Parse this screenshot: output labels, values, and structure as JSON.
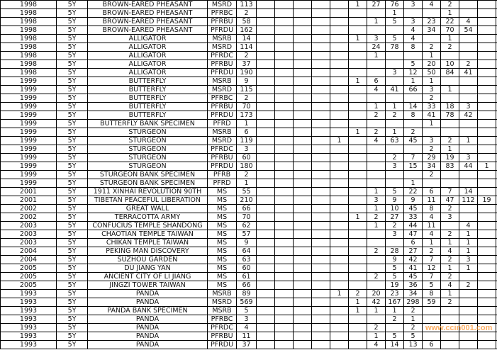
{
  "rows": [
    {
      "year": "1998",
      "term": "5Y",
      "name": "BROWN-EARED PHEASANT",
      "type": "MSRD",
      "count": "113",
      "v": [
        "",
        "",
        "",
        "",
        "",
        "1",
        "27",
        "76",
        "3",
        "4",
        "2",
        "",
        "",
        ""
      ]
    },
    {
      "year": "1998",
      "term": "5Y",
      "name": "BROWN-EARED PHEASANT",
      "type": "PFRBC",
      "count": "2",
      "v": [
        "",
        "",
        "",
        "",
        "",
        "",
        "",
        "1",
        "",
        "",
        "1",
        "",
        "",
        ""
      ]
    },
    {
      "year": "1998",
      "term": "5Y",
      "name": "BROWN-EARED PHEASANT",
      "type": "PFRBU",
      "count": "58",
      "v": [
        "",
        "",
        "",
        "",
        "",
        "",
        "1",
        "5",
        "3",
        "23",
        "22",
        "4",
        "",
        ""
      ]
    },
    {
      "year": "1998",
      "term": "5Y",
      "name": "BROWN-EARED PHEASANT",
      "type": "PFRDU",
      "count": "162",
      "v": [
        "",
        "",
        "",
        "",
        "",
        "",
        "",
        "",
        "4",
        "34",
        "70",
        "54",
        "",
        ""
      ]
    },
    {
      "year": "1998",
      "term": "5Y",
      "name": "ALLIGATOR",
      "type": "MSRB",
      "count": "14",
      "v": [
        "",
        "",
        "",
        "",
        "",
        "1",
        "3",
        "5",
        "4",
        "",
        "1",
        "",
        "",
        ""
      ]
    },
    {
      "year": "1998",
      "term": "5Y",
      "name": "ALLIGATOR",
      "type": "MSRD",
      "count": "114",
      "v": [
        "",
        "",
        "",
        "",
        "",
        "",
        "24",
        "78",
        "8",
        "2",
        "2",
        "",
        "",
        ""
      ]
    },
    {
      "year": "1998",
      "term": "5Y",
      "name": "ALLIGATOR",
      "type": "PFRDC",
      "count": "2",
      "v": [
        "",
        "",
        "",
        "",
        "",
        "",
        "1",
        "",
        "",
        "1",
        "",
        "",
        "",
        ""
      ]
    },
    {
      "year": "1998",
      "term": "5Y",
      "name": "ALLIGATOR",
      "type": "PFRBU",
      "count": "37",
      "v": [
        "",
        "",
        "",
        "",
        "",
        "",
        "",
        "",
        "5",
        "20",
        "10",
        "2",
        "",
        ""
      ]
    },
    {
      "year": "1998",
      "term": "5Y",
      "name": "ALLIGATOR",
      "type": "PFRDU",
      "count": "190",
      "v": [
        "",
        "",
        "",
        "",
        "",
        "",
        "",
        "3",
        "12",
        "50",
        "84",
        "41",
        "",
        ""
      ]
    },
    {
      "year": "1999",
      "term": "5Y",
      "name": "BUTTERFLY",
      "type": "MSRB",
      "count": "9",
      "v": [
        "",
        "",
        "",
        "",
        "",
        "1",
        "6",
        "",
        "1",
        "1",
        "",
        "",
        "",
        ""
      ]
    },
    {
      "year": "1999",
      "term": "5Y",
      "name": "BUTTERFLY",
      "type": "MSRD",
      "count": "115",
      "v": [
        "",
        "",
        "",
        "",
        "",
        "",
        "4",
        "41",
        "66",
        "3",
        "1",
        "",
        "",
        ""
      ]
    },
    {
      "year": "1999",
      "term": "5Y",
      "name": "BUTTERFLY",
      "type": "PFRBC",
      "count": "2",
      "v": [
        "",
        "",
        "",
        "",
        "",
        "",
        "",
        "",
        "",
        "2",
        "",
        "",
        "",
        ""
      ]
    },
    {
      "year": "1999",
      "term": "5Y",
      "name": "BUTTERFLY",
      "type": "PFRBU",
      "count": "70",
      "v": [
        "",
        "",
        "",
        "",
        "",
        "",
        "1",
        "1",
        "14",
        "33",
        "18",
        "3",
        "",
        ""
      ]
    },
    {
      "year": "1999",
      "term": "5Y",
      "name": "BUTTERFLY",
      "type": "PFRDU",
      "count": "173",
      "v": [
        "",
        "",
        "",
        "",
        "",
        "",
        "2",
        "2",
        "8",
        "41",
        "78",
        "42",
        "",
        ""
      ]
    },
    {
      "year": "1999",
      "term": "5Y",
      "name": "BUTTERFLY BANK SPECIMEN",
      "type": "PFRD",
      "count": "1",
      "v": [
        "",
        "",
        "",
        "",
        "",
        "",
        "",
        "",
        "",
        "1",
        "",
        "",
        "",
        ""
      ]
    },
    {
      "year": "1999",
      "term": "5Y",
      "name": "STURGEON",
      "type": "MSRB",
      "count": "6",
      "v": [
        "",
        "",
        "",
        "",
        "",
        "1",
        "2",
        "1",
        "2",
        "",
        "",
        "",
        "",
        ""
      ]
    },
    {
      "year": "1999",
      "term": "5Y",
      "name": "STURGEON",
      "type": "MSRD",
      "count": "119",
      "v": [
        "",
        "",
        "",
        "",
        "1",
        "",
        "4",
        "63",
        "45",
        "3",
        "2",
        "1",
        "",
        ""
      ]
    },
    {
      "year": "1999",
      "term": "5Y",
      "name": "STURGEON",
      "type": "PFRDC",
      "count": "3",
      "v": [
        "",
        "",
        "",
        "",
        "",
        "",
        "",
        "",
        "",
        "2",
        "1",
        "",
        "",
        ""
      ]
    },
    {
      "year": "1999",
      "term": "5Y",
      "name": "STURGEON",
      "type": "PFRBU",
      "count": "60",
      "v": [
        "",
        "",
        "",
        "",
        "",
        "",
        "",
        "2",
        "7",
        "29",
        "19",
        "3",
        "",
        ""
      ]
    },
    {
      "year": "1999",
      "term": "5Y",
      "name": "STURGEON",
      "type": "PFRDU",
      "count": "180",
      "v": [
        "",
        "",
        "",
        "",
        "",
        "",
        "",
        "3",
        "15",
        "34",
        "83",
        "44",
        "1",
        ""
      ]
    },
    {
      "year": "1999",
      "term": "5Y",
      "name": "STURGEON BANK SPECIMEN",
      "type": "PFRB",
      "count": "2",
      "v": [
        "",
        "",
        "",
        "",
        "",
        "",
        "",
        "",
        "",
        "2",
        "",
        "",
        "",
        ""
      ]
    },
    {
      "year": "1999",
      "term": "5Y",
      "name": "STURGEON BANK SPECIMEN",
      "type": "PFRD",
      "count": "1",
      "v": [
        "",
        "",
        "",
        "",
        "",
        "",
        "",
        "",
        "1",
        "",
        "",
        "",
        "",
        ""
      ]
    },
    {
      "year": "2001",
      "term": "5Y",
      "name": "1911 XINHAI REVOLUTION 90TH",
      "type": "MS",
      "count": "55",
      "v": [
        "",
        "",
        "",
        "",
        "",
        "",
        "1",
        "5",
        "22",
        "6",
        "7",
        "14",
        "",
        ""
      ]
    },
    {
      "year": "2001",
      "term": "5Y",
      "name": "TIBETAN PEACEFUL LIBERATION",
      "type": "MS",
      "count": "210",
      "v": [
        "",
        "",
        "",
        "",
        "",
        "",
        "3",
        "9",
        "9",
        "11",
        "47",
        "112",
        "19",
        ""
      ]
    },
    {
      "year": "2002",
      "term": "5Y",
      "name": "GREAT WALL",
      "type": "MS",
      "count": "66",
      "v": [
        "",
        "",
        "",
        "",
        "",
        "",
        "1",
        "10",
        "45",
        "8",
        "2",
        "",
        "",
        ""
      ]
    },
    {
      "year": "2002",
      "term": "5Y",
      "name": "TERRACOTTA ARMY",
      "type": "MS",
      "count": "70",
      "v": [
        "",
        "",
        "",
        "",
        "",
        "1",
        "2",
        "27",
        "33",
        "4",
        "3",
        "",
        "",
        ""
      ]
    },
    {
      "year": "2003",
      "term": "5Y",
      "name": "CONFUCIUS TEMPLE SHANDONG",
      "type": "MS",
      "count": "62",
      "v": [
        "",
        "",
        "",
        "",
        "",
        "",
        "1",
        "2",
        "44",
        "11",
        "",
        "4",
        "",
        ""
      ]
    },
    {
      "year": "2003",
      "term": "5Y",
      "name": "CHAOTIAN TEMPLE TAIWAN",
      "type": "MS",
      "count": "57",
      "v": [
        "",
        "",
        "",
        "",
        "",
        "",
        "",
        "3",
        "47",
        "4",
        "2",
        "1",
        "",
        ""
      ]
    },
    {
      "year": "2003",
      "term": "5Y",
      "name": "CHIKAN TEMPLE TAIWAN",
      "type": "MS",
      "count": "9",
      "v": [
        "",
        "",
        "",
        "",
        "",
        "",
        "",
        "",
        "6",
        "1",
        "1",
        "1",
        "",
        ""
      ]
    },
    {
      "year": "2004",
      "term": "5Y",
      "name": "PEKING MAN DISCOVERY",
      "type": "MS",
      "count": "64",
      "v": [
        "",
        "",
        "",
        "",
        "",
        "",
        "2",
        "28",
        "27",
        "2",
        "4",
        "1",
        "",
        ""
      ]
    },
    {
      "year": "2004",
      "term": "5Y",
      "name": "SUZHOU GARDEN",
      "type": "MS",
      "count": "63",
      "v": [
        "",
        "",
        "",
        "",
        "",
        "",
        "",
        "9",
        "42",
        "7",
        "2",
        "3",
        "",
        ""
      ]
    },
    {
      "year": "2005",
      "term": "5Y",
      "name": "DU JIANG YAN",
      "type": "MS",
      "count": "60",
      "v": [
        "",
        "",
        "",
        "",
        "",
        "",
        "",
        "5",
        "41",
        "12",
        "1",
        "1",
        "",
        ""
      ]
    },
    {
      "year": "2005",
      "term": "5Y",
      "name": "ANCIENT CITY OF LI JIANG",
      "type": "MS",
      "count": "61",
      "v": [
        "",
        "",
        "",
        "",
        "",
        "",
        "2",
        "5",
        "45",
        "7",
        "2",
        "",
        "",
        ""
      ]
    },
    {
      "year": "2005",
      "term": "5Y",
      "name": "JINGZI TOWER TAIWAN",
      "type": "MS",
      "count": "66",
      "v": [
        "",
        "",
        "",
        "",
        "",
        "",
        "",
        "19",
        "36",
        "5",
        "4",
        "2",
        "",
        ""
      ]
    },
    {
      "year": "1993",
      "term": "5Y",
      "name": "PANDA",
      "type": "MSRB",
      "count": "89",
      "v": [
        "",
        "",
        "",
        "",
        "1",
        "2",
        "20",
        "23",
        "34",
        "8",
        "1",
        "",
        "",
        ""
      ]
    },
    {
      "year": "1993",
      "term": "5Y",
      "name": "PANDA",
      "type": "MSRD",
      "count": "569",
      "v": [
        "",
        "",
        "",
        "",
        "",
        "1",
        "42",
        "167",
        "298",
        "59",
        "2",
        "",
        "",
        ""
      ]
    },
    {
      "year": "1993",
      "term": "5Y",
      "name": "PANDA BANK SPECIMEN",
      "type": "MSRB",
      "count": "5",
      "v": [
        "",
        "",
        "",
        "",
        "",
        "1",
        "1",
        "1",
        "2",
        "",
        "",
        "",
        "",
        ""
      ]
    },
    {
      "year": "1993",
      "term": "5Y",
      "name": "PANDA",
      "type": "PFRBC",
      "count": "3",
      "v": [
        "",
        "",
        "",
        "",
        "",
        "",
        "",
        "2",
        "1",
        "",
        "",
        "",
        "",
        ""
      ]
    },
    {
      "year": "1993",
      "term": "5Y",
      "name": "PANDA",
      "type": "PFRDC",
      "count": "4",
      "v": [
        "",
        "",
        "",
        "",
        "",
        "",
        "2",
        "",
        "2",
        "",
        "",
        "",
        "",
        ""
      ]
    },
    {
      "year": "1993",
      "term": "5Y",
      "name": "PANDA",
      "type": "PFRBU",
      "count": "11",
      "v": [
        "",
        "",
        "",
        "",
        "",
        "",
        "1",
        "5",
        "5",
        "",
        "",
        "",
        "",
        ""
      ]
    },
    {
      "year": "1993",
      "term": "5Y",
      "name": "PANDA",
      "type": "PFRDU",
      "count": "37",
      "v": [
        "",
        "",
        "",
        "",
        "",
        "",
        "4",
        "14",
        "13",
        "6",
        "",
        "",
        "",
        ""
      ]
    }
  ],
  "watermark": "www.ccin001.com",
  "colors": {
    "grid": "#000000",
    "text": "#111111",
    "watermark": "#ff9632"
  }
}
